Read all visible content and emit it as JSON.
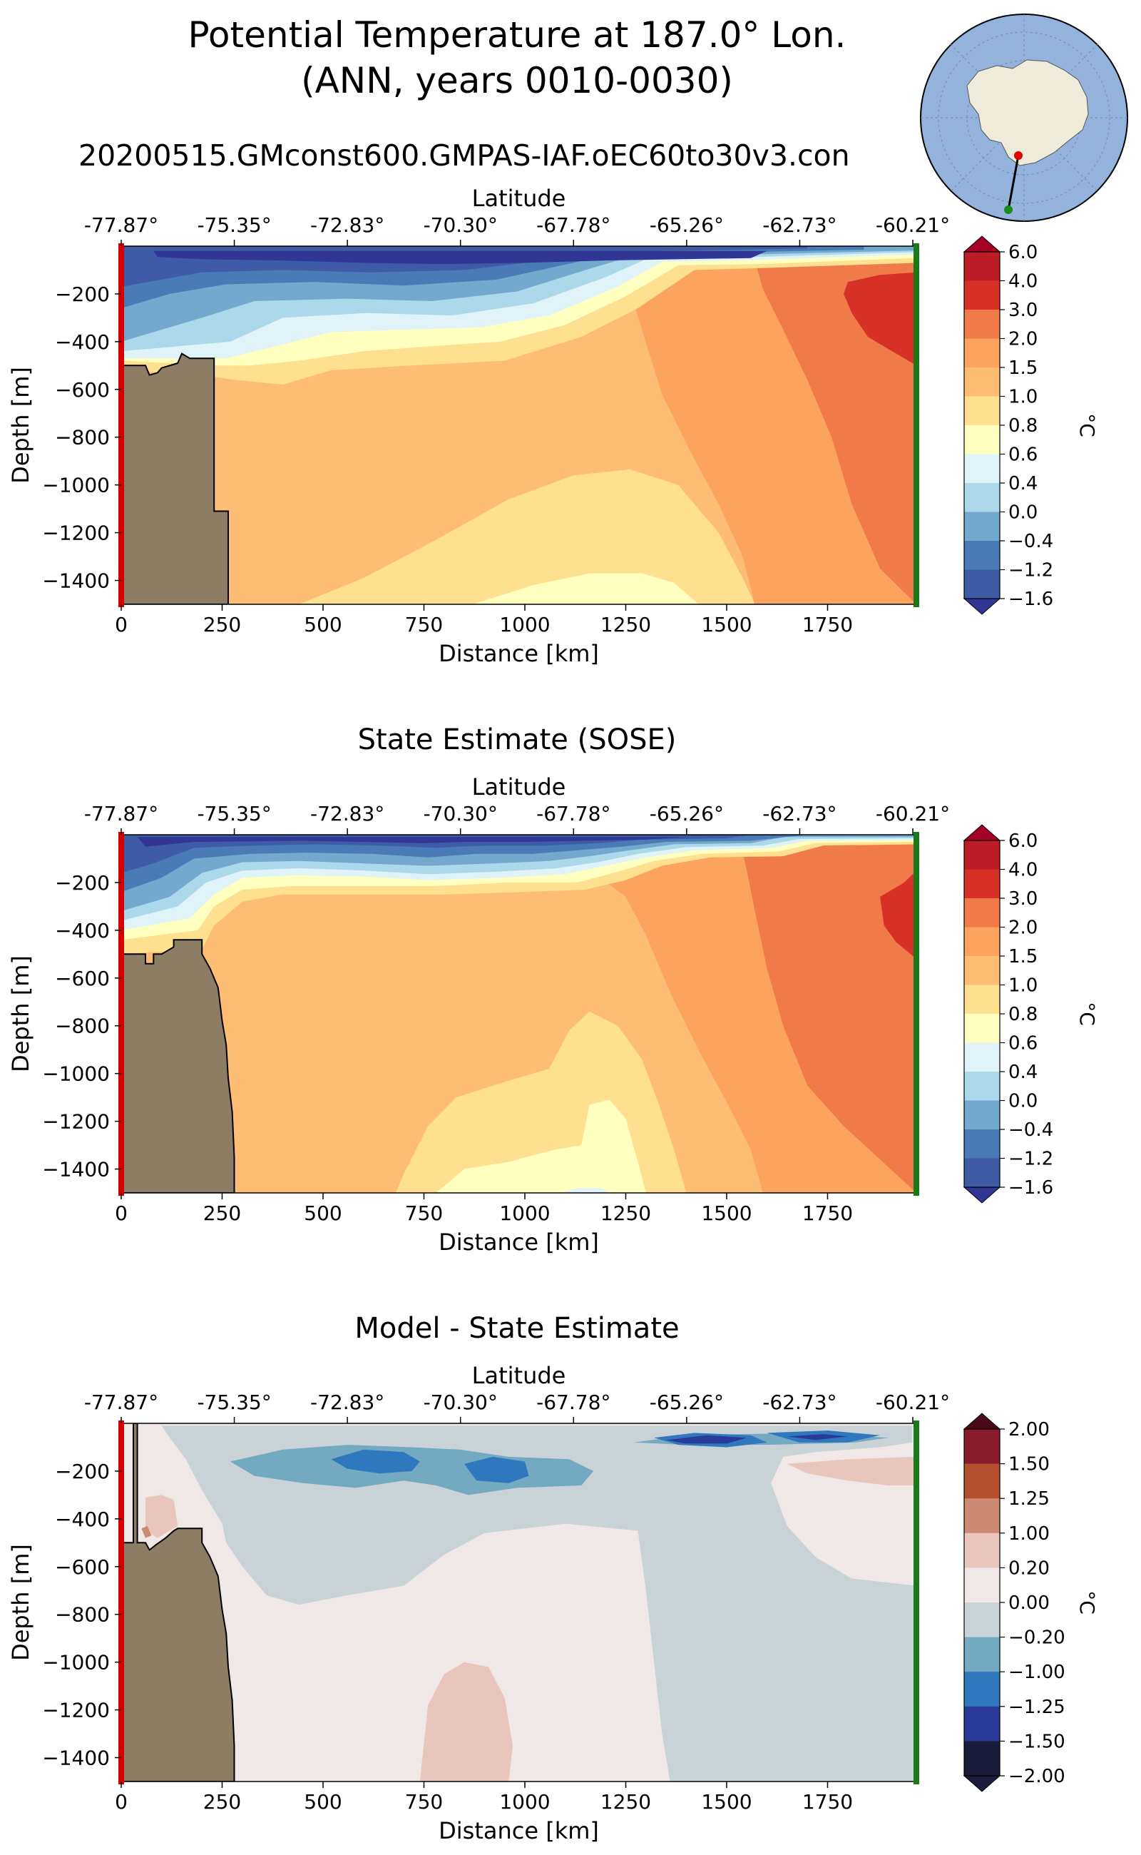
{
  "header": {
    "title_line1": "Potential Temperature at 187.0° Lon.",
    "title_line2": "(ANN, years 0010-0030)",
    "run_name": "20200515.GMconst600.GMPAS-IAF.oEC60to30v3.con"
  },
  "colors": {
    "land": "#8c7d64",
    "start_marker": "#d40000",
    "end_marker": "#1a7a1a",
    "temp_colormap": [
      "#313695",
      "#3e5ba6",
      "#4a7bb7",
      "#74a9cf",
      "#abd9e9",
      "#e0f3f8",
      "#ffffbf",
      "#fee090",
      "#fdbd74",
      "#fca35d",
      "#f07a4a",
      "#d73027",
      "#bb1e26",
      "#a50026"
    ],
    "diff_colormap": [
      "#1b1b3a",
      "#2b3a99",
      "#2f78bd",
      "#74a9c2",
      "#c9d3d7",
      "#f0e8e6",
      "#e8c6bd",
      "#cd8a72",
      "#b5502f",
      "#8a1a2e",
      "#4a0a18"
    ]
  },
  "chart_data": [
    {
      "type": "contourf",
      "name": "model",
      "title": "",
      "xlabel": "Distance [km]",
      "ylabel": "Depth [m]",
      "top_xlabel": "Latitude",
      "xlim": [
        0,
        1970
      ],
      "ylim": [
        -1500,
        0
      ],
      "x_ticks": [
        0,
        250,
        500,
        750,
        1000,
        1250,
        1500,
        1750
      ],
      "y_ticks": [
        -200,
        -400,
        -600,
        -800,
        -1000,
        -1200,
        -1400
      ],
      "top_ticks": [
        "-77.87°",
        "-75.35°",
        "-72.83°",
        "-70.30°",
        "-67.78°",
        "-65.26°",
        "-62.73°",
        "-60.21°"
      ],
      "colorbar_label": "°C",
      "colorbar_ticks": [
        "6.0",
        "4.0",
        "3.0",
        "2.0",
        "1.5",
        "1.0",
        "0.8",
        "0.6",
        "0.4",
        "0.0",
        "−0.4",
        "−1.2",
        "−1.6"
      ],
      "colorbar_extend": "both"
    },
    {
      "type": "contourf",
      "name": "sose",
      "title": "State Estimate (SOSE)",
      "xlabel": "Distance [km]",
      "ylabel": "Depth [m]",
      "top_xlabel": "Latitude",
      "xlim": [
        0,
        1970
      ],
      "ylim": [
        -1500,
        0
      ],
      "x_ticks": [
        0,
        250,
        500,
        750,
        1000,
        1250,
        1500,
        1750
      ],
      "y_ticks": [
        -200,
        -400,
        -600,
        -800,
        -1000,
        -1200,
        -1400
      ],
      "top_ticks": [
        "-77.87°",
        "-75.35°",
        "-72.83°",
        "-70.30°",
        "-67.78°",
        "-65.26°",
        "-62.73°",
        "-60.21°"
      ],
      "colorbar_label": "°C",
      "colorbar_ticks": [
        "6.0",
        "4.0",
        "3.0",
        "2.0",
        "1.5",
        "1.0",
        "0.8",
        "0.6",
        "0.4",
        "0.0",
        "−0.4",
        "−1.2",
        "−1.6"
      ],
      "colorbar_extend": "both"
    },
    {
      "type": "contourf",
      "name": "diff",
      "title": "Model - State Estimate",
      "xlabel": "Distance [km]",
      "ylabel": "Depth [m]",
      "top_xlabel": "Latitude",
      "xlim": [
        0,
        1970
      ],
      "ylim": [
        -1500,
        0
      ],
      "x_ticks": [
        0,
        250,
        500,
        750,
        1000,
        1250,
        1500,
        1750
      ],
      "y_ticks": [
        -200,
        -400,
        -600,
        -800,
        -1000,
        -1200,
        -1400
      ],
      "top_ticks": [
        "-77.87°",
        "-75.35°",
        "-72.83°",
        "-70.30°",
        "-67.78°",
        "-65.26°",
        "-62.73°",
        "-60.21°"
      ],
      "colorbar_label": "°C",
      "colorbar_ticks": [
        "2.00",
        "1.50",
        "1.25",
        "1.00",
        "0.20",
        "0.00",
        "−0.20",
        "−1.00",
        "−1.25",
        "−1.50",
        "−2.00"
      ],
      "colorbar_extend": "both"
    }
  ]
}
